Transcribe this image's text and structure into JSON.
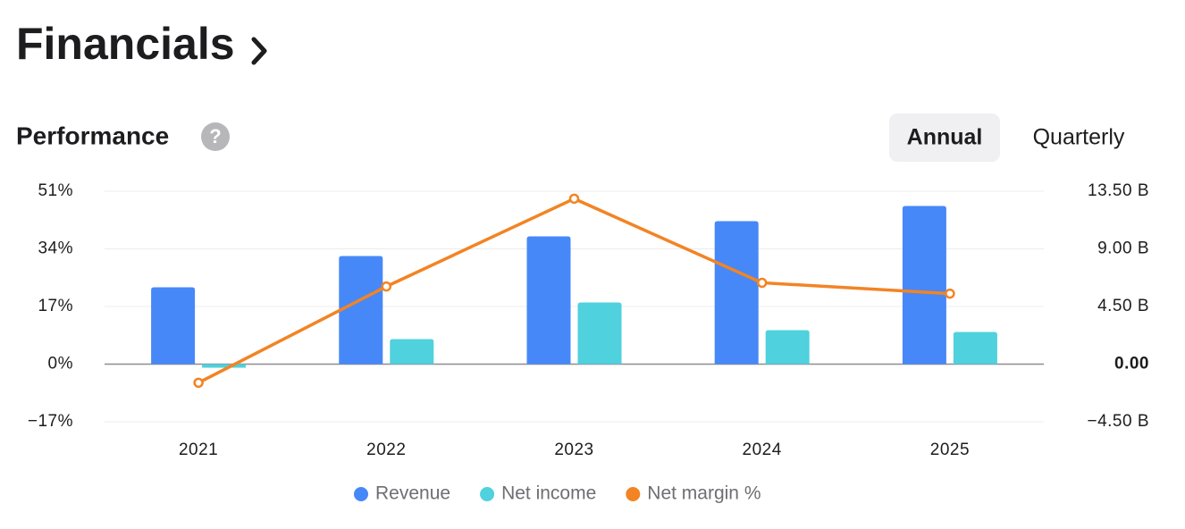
{
  "header": {
    "title": "Financials"
  },
  "section": {
    "title": "Performance",
    "toggle": [
      "Annual",
      "Quarterly"
    ],
    "active": 0
  },
  "chart_data": {
    "type": "bar",
    "categories": [
      "2021",
      "2022",
      "2023",
      "2024",
      "2025"
    ],
    "series": [
      {
        "name": "Revenue",
        "type": "bar",
        "axis": "y2",
        "color": "#4788f8",
        "values": [
          6.0,
          8.44,
          9.98,
          11.16,
          12.35
        ]
      },
      {
        "name": "Net income",
        "type": "bar",
        "axis": "y2",
        "color": "#4fd1de",
        "values": [
          -0.28,
          1.95,
          4.81,
          2.65,
          2.51
        ]
      },
      {
        "name": "Net margin %",
        "type": "line",
        "color": "#f28424",
        "values": [
          -5.5,
          22.9,
          48.8,
          24.0,
          20.8
        ]
      }
    ],
    "ylim": [
      -17,
      51
    ],
    "yticks": [
      {
        "value": 51,
        "label": "51%"
      },
      {
        "value": 34,
        "label": "34%"
      },
      {
        "value": 17,
        "label": "17%"
      },
      {
        "value": 0,
        "label": "0%"
      },
      {
        "value": -17,
        "label": "−17%"
      }
    ],
    "y2lim": [
      -4.5,
      13.5
    ],
    "y2ticks": [
      {
        "value": 13.5,
        "label": "13.50 B"
      },
      {
        "value": 9,
        "label": "9.00 B"
      },
      {
        "value": 4.5,
        "label": "4.50 B"
      },
      {
        "value": 0,
        "label": "0.00"
      },
      {
        "value": -4.5,
        "label": "−4.50 B"
      }
    ],
    "grid": true
  }
}
